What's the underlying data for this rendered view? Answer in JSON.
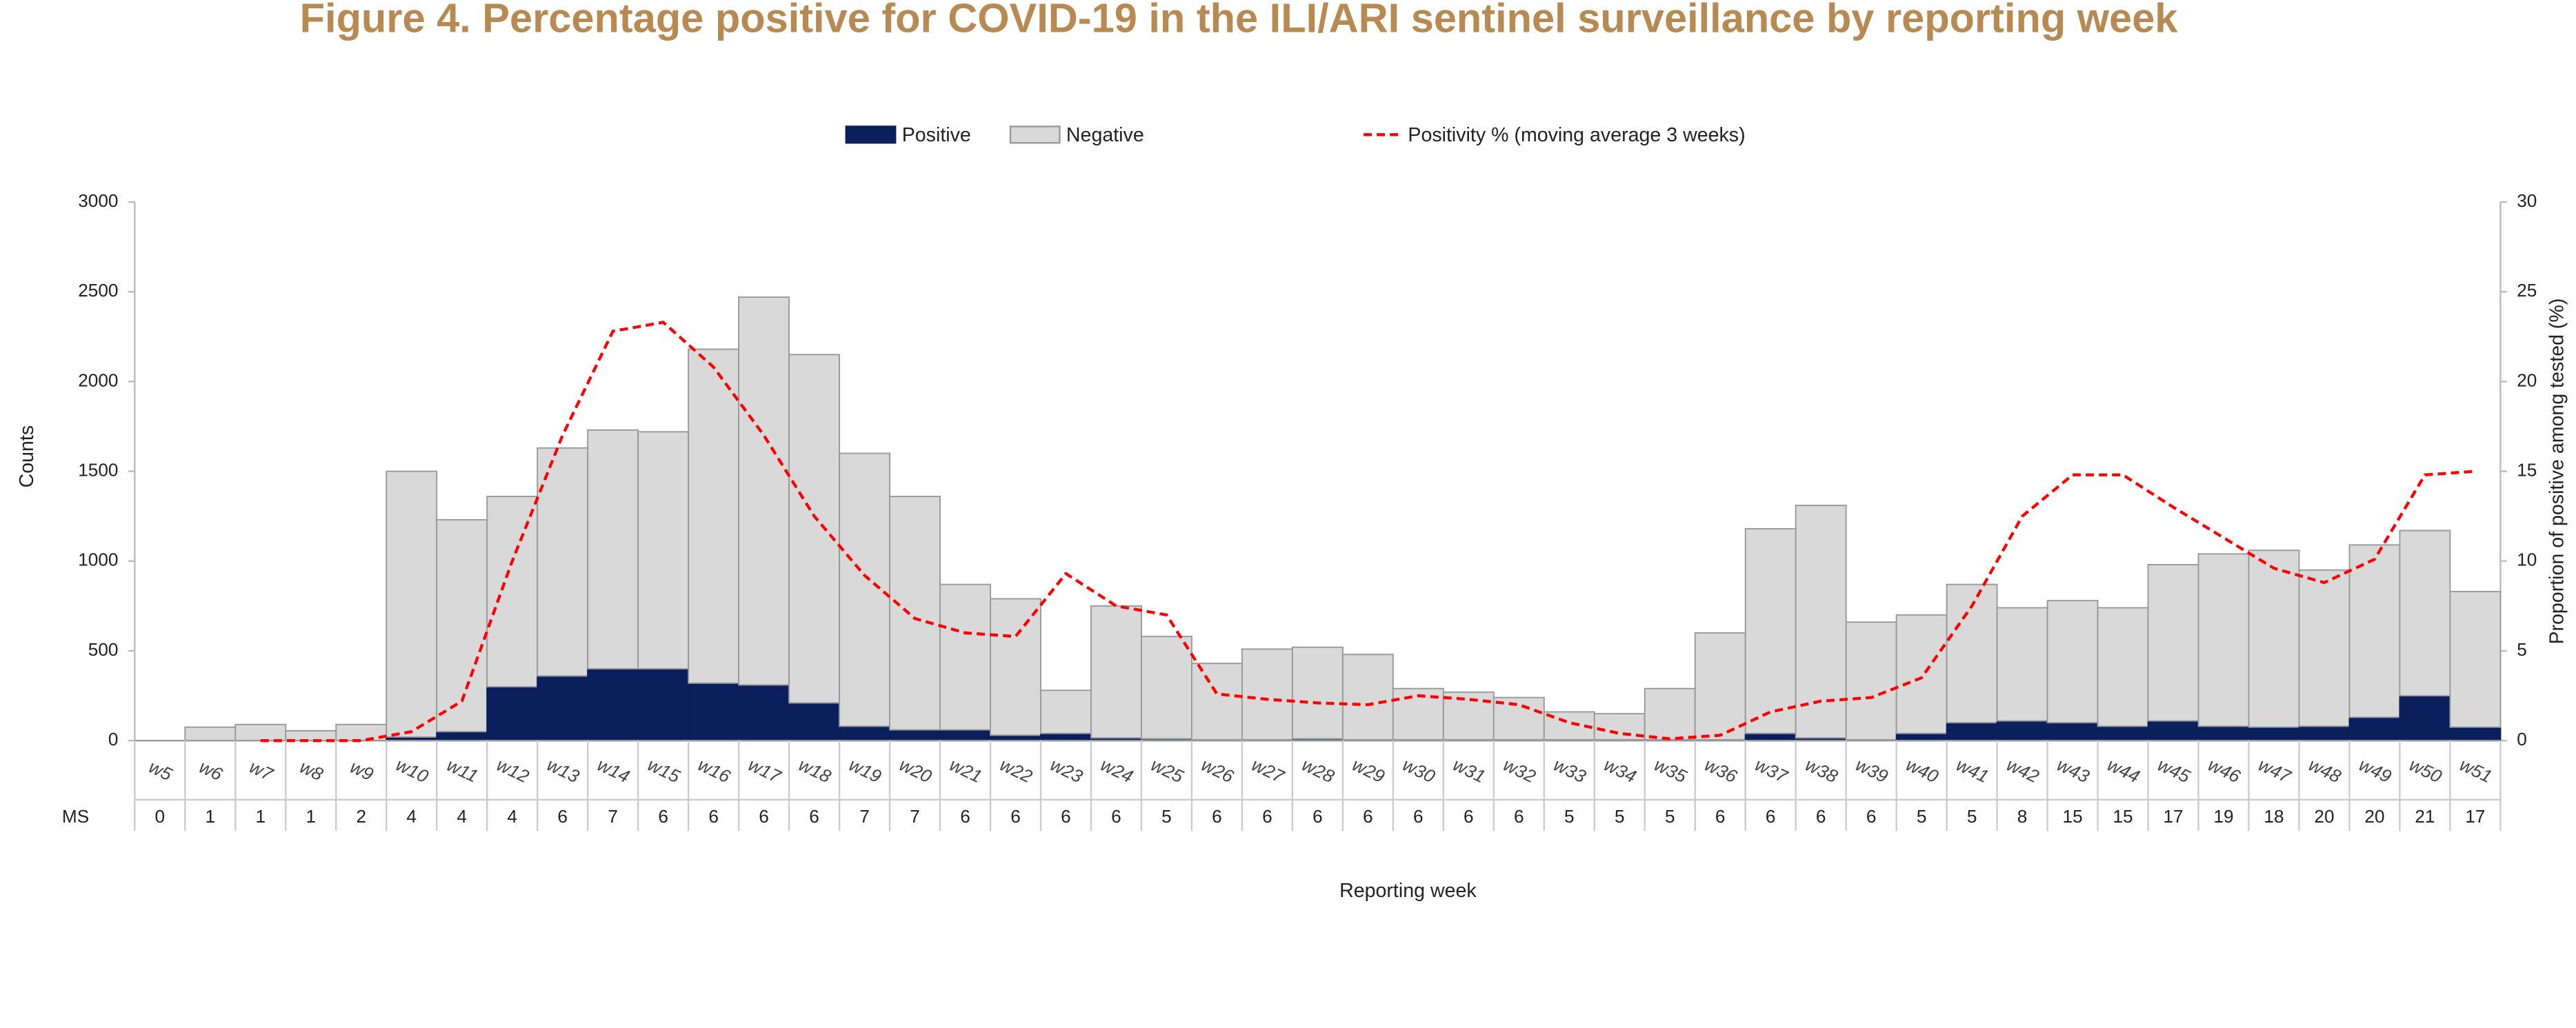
{
  "chart_data": {
    "type": "bar",
    "title": "Figure 4. Percentage positive for COVID-19 in the ILI/ARI sentinel surveillance by reporting week",
    "ylabel": "Counts",
    "y2label": "Proportion of positive among tested (%)",
    "xlabel": "Reporting week",
    "row_label": "MS",
    "stacked": true,
    "categories": [
      "w5",
      "w6",
      "w7",
      "w8",
      "w9",
      "w10",
      "w11",
      "w12",
      "w13",
      "w14",
      "w15",
      "w16",
      "w17",
      "w18",
      "w19",
      "w20",
      "w21",
      "w22",
      "w23",
      "w24",
      "w25",
      "w26",
      "w27",
      "w28",
      "w29",
      "w30",
      "w31",
      "w32",
      "w33",
      "w34",
      "w35",
      "w36",
      "w37",
      "w38",
      "w39",
      "w40",
      "w41",
      "w42",
      "w43",
      "w44",
      "w45",
      "w46",
      "w47",
      "w48",
      "w49",
      "w50",
      "w51"
    ],
    "row_values": [
      0,
      1,
      1,
      1,
      2,
      4,
      4,
      4,
      6,
      7,
      6,
      6,
      6,
      6,
      7,
      7,
      6,
      6,
      6,
      6,
      5,
      6,
      6,
      6,
      6,
      6,
      6,
      6,
      5,
      5,
      5,
      6,
      6,
      6,
      6,
      5,
      5,
      8,
      15,
      15,
      17,
      19,
      18,
      20,
      20,
      21,
      17
    ],
    "series": [
      {
        "name": "Positive",
        "type": "bar",
        "color": "#0b1f5c",
        "values": [
          0,
          0,
          0,
          0,
          0,
          20,
          50,
          300,
          360,
          400,
          400,
          320,
          310,
          210,
          80,
          60,
          60,
          30,
          40,
          15,
          10,
          5,
          5,
          10,
          5,
          5,
          5,
          5,
          5,
          5,
          5,
          5,
          40,
          15,
          5,
          40,
          100,
          110,
          100,
          80,
          110,
          80,
          75,
          80,
          130,
          250,
          75
        ]
      },
      {
        "name": "Negative",
        "type": "bar",
        "color": "#d9d9d9",
        "values": [
          0,
          75,
          90,
          55,
          90,
          1480,
          1180,
          1060,
          1270,
          1330,
          1320,
          1860,
          2160,
          1940,
          1520,
          1300,
          810,
          760,
          240,
          735,
          570,
          425,
          505,
          510,
          475,
          285,
          265,
          235,
          155,
          145,
          285,
          595,
          1140,
          1295,
          655,
          660,
          770,
          630,
          680,
          660,
          870,
          960,
          985,
          870,
          960,
          920,
          755
        ]
      },
      {
        "name": "Positivity % (moving average 3 weeks)",
        "type": "line",
        "axis": "y2",
        "color": "#ff0000",
        "values": [
          null,
          null,
          0,
          0,
          0,
          0.5,
          2.2,
          10,
          17,
          22.8,
          23.3,
          20.8,
          17,
          12.5,
          9.2,
          6.8,
          6,
          5.8,
          9.3,
          7.5,
          7,
          2.6,
          2.3,
          2.1,
          2,
          2.5,
          2.3,
          2,
          1,
          0.4,
          0.1,
          0.3,
          1.6,
          2.2,
          2.4,
          3.5,
          7.5,
          12.5,
          14.8,
          14.8,
          13,
          11.3,
          9.6,
          8.8,
          10.1,
          14.8,
          15
        ]
      }
    ],
    "ylim": [
      0,
      3000
    ],
    "yticks": [
      0,
      500,
      1000,
      1500,
      2000,
      2500,
      3000
    ],
    "y2lim": [
      0,
      30
    ],
    "y2ticks": [
      0,
      5,
      10,
      15,
      20,
      25,
      30
    ],
    "legend": "top"
  }
}
